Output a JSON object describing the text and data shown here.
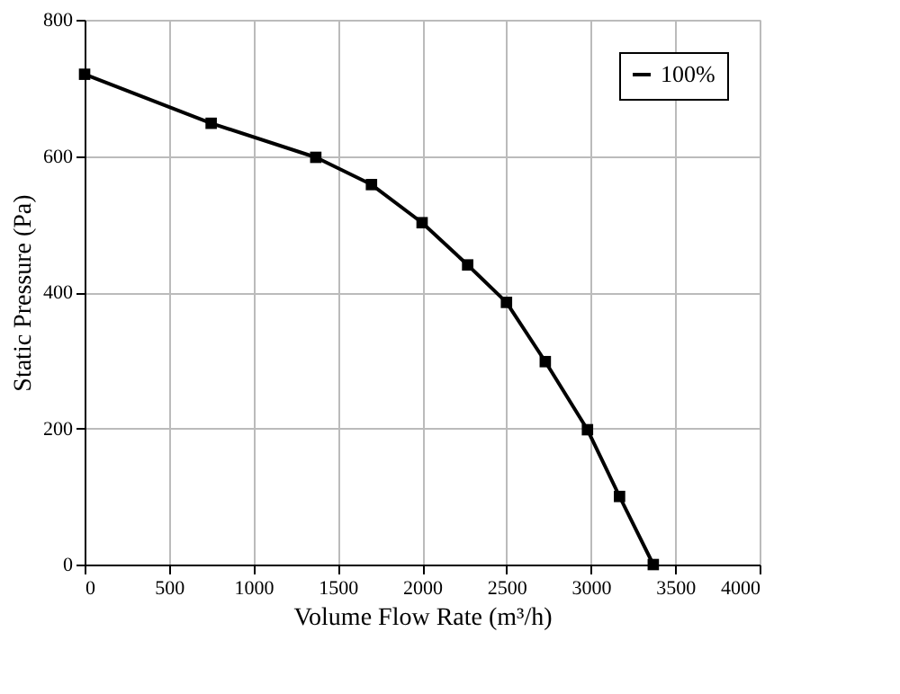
{
  "chart_data": {
    "type": "line",
    "xlabel": "Volume Flow Rate (m³/h)",
    "ylabel": "Static Pressure (Pa)",
    "x": [
      0,
      750,
      1370,
      1700,
      2000,
      2270,
      2500,
      2730,
      2980,
      3170,
      3370
    ],
    "series": [
      {
        "name": "100%",
        "color": "#000000",
        "values": [
          720,
          648,
          598,
          558,
          502,
          440,
          385,
          298,
          198,
          100,
          0
        ]
      }
    ],
    "xlim": [
      0,
      4000
    ],
    "xticks": [
      0,
      500,
      1000,
      1500,
      2000,
      2500,
      3000,
      3500,
      4000
    ],
    "ylim": [
      0,
      800
    ],
    "yticks": [
      0,
      200,
      400,
      600,
      800
    ],
    "grid": true,
    "legend": "top right",
    "marker": "square",
    "line_style": "solid"
  }
}
